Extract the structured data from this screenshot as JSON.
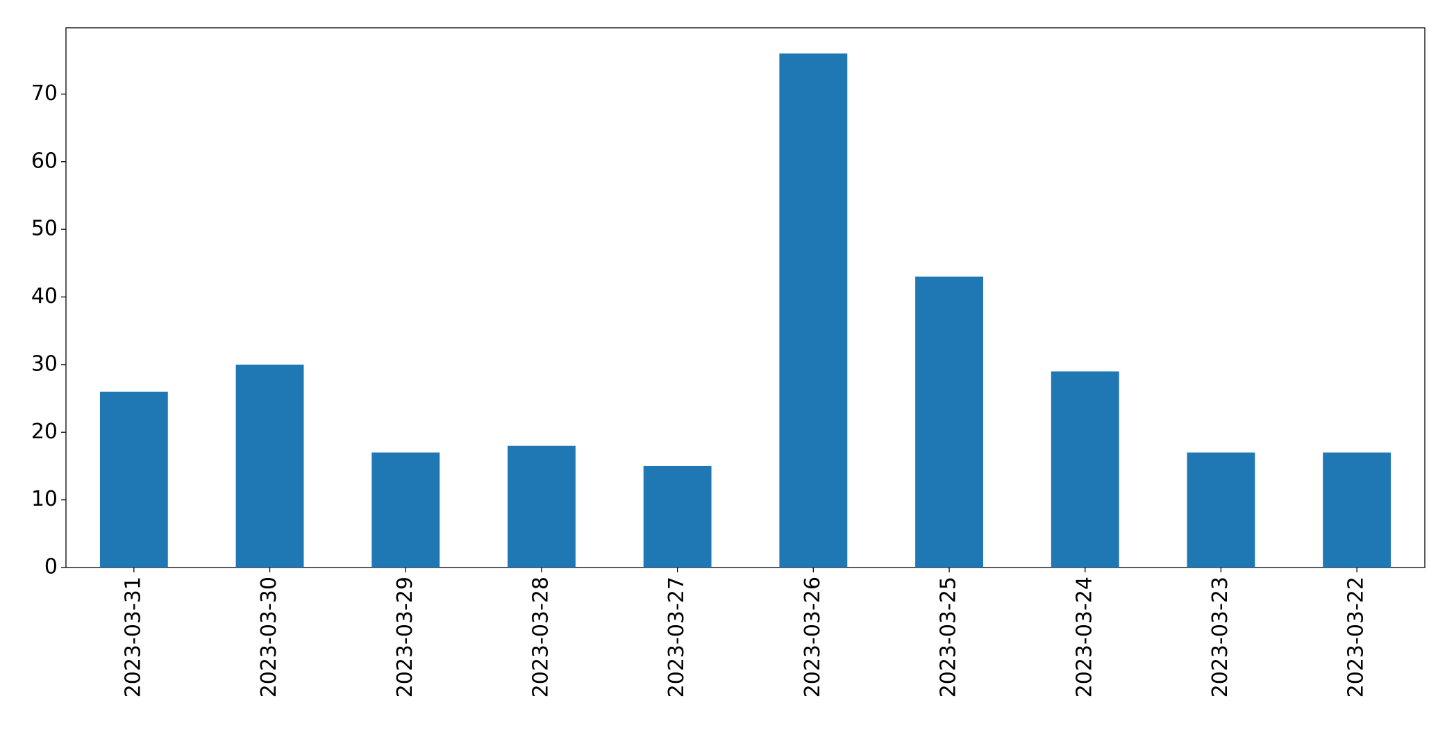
{
  "chart_data": {
    "type": "bar",
    "categories": [
      "2023-03-31",
      "2023-03-30",
      "2023-03-29",
      "2023-03-28",
      "2023-03-27",
      "2023-03-26",
      "2023-03-25",
      "2023-03-24",
      "2023-03-23",
      "2023-03-22"
    ],
    "values": [
      26,
      30,
      17,
      18,
      15,
      76,
      43,
      29,
      17,
      17
    ],
    "color": "#1f77b4",
    "ylim": [
      0,
      79.8
    ],
    "yticks": [
      0,
      10,
      20,
      30,
      40,
      50,
      60,
      70
    ],
    "grid": false
  }
}
